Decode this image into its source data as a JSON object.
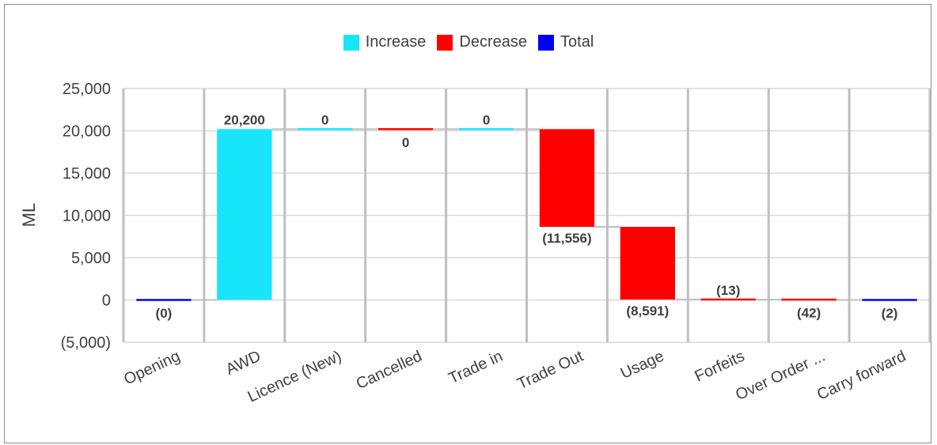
{
  "chart_data": {
    "type": "bar",
    "subtype": "waterfall",
    "ylabel": "ML",
    "ylim": [
      -5000,
      25000
    ],
    "yticks": [
      25000,
      20000,
      15000,
      10000,
      5000,
      0,
      -5000
    ],
    "ytick_labels": [
      "25,000",
      "20,000",
      "15,000",
      "10,000",
      "5,000",
      "0",
      "(5,000)"
    ],
    "grid": true,
    "legend_position": "top-center",
    "legend": [
      {
        "name": "Increase",
        "color": "#18E5FA"
      },
      {
        "name": "Decrease",
        "color": "#FF0000"
      },
      {
        "name": "Total",
        "color": "#0000FF"
      }
    ],
    "categories": [
      "Opening",
      "AWD",
      "Licence (New)",
      "Cancelled",
      "Trade in",
      "Trade Out",
      "Usage",
      "Forfeits",
      "Over Order ...",
      "Carry forward"
    ],
    "bars": [
      {
        "category": "Opening",
        "kind": "Total",
        "start": 0,
        "end": 0,
        "label": "(0)",
        "label_pos": "below"
      },
      {
        "category": "AWD",
        "kind": "Increase",
        "start": 0,
        "end": 20200,
        "label": "20,200",
        "label_pos": "above"
      },
      {
        "category": "Licence (New)",
        "kind": "Increase",
        "start": 20200,
        "end": 20200,
        "label": "0",
        "label_pos": "above"
      },
      {
        "category": "Cancelled",
        "kind": "Decrease",
        "start": 20200,
        "end": 20200,
        "label": "0",
        "label_pos": "below"
      },
      {
        "category": "Trade in",
        "kind": "Increase",
        "start": 20200,
        "end": 20200,
        "label": "0",
        "label_pos": "above"
      },
      {
        "category": "Trade Out",
        "kind": "Decrease",
        "start": 20200,
        "end": 8644,
        "label": "(11,556)",
        "label_pos": "below"
      },
      {
        "category": "Usage",
        "kind": "Decrease",
        "start": 8644,
        "end": 53,
        "label": "(8,591)",
        "label_pos": "below"
      },
      {
        "category": "Forfeits",
        "kind": "Decrease",
        "start": 53,
        "end": 40,
        "label": "(13)",
        "label_pos": "above"
      },
      {
        "category": "Over Order ...",
        "kind": "Decrease",
        "start": 40,
        "end": -2,
        "label": "(42)",
        "label_pos": "below"
      },
      {
        "category": "Carry forward",
        "kind": "Total",
        "start": 0,
        "end": -2,
        "label": "(2)",
        "label_pos": "below"
      }
    ]
  }
}
